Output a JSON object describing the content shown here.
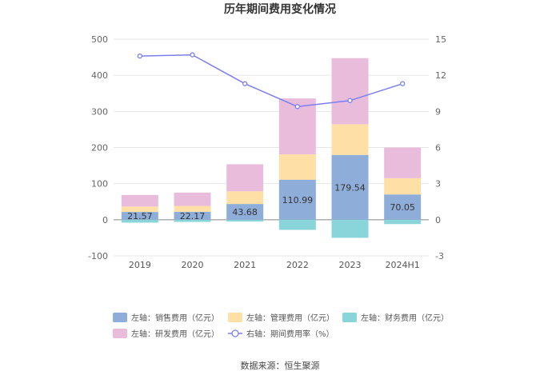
{
  "chart_data": {
    "type": "bar",
    "title": "历年期间费用变化情况",
    "categories": [
      "2019",
      "2020",
      "2021",
      "2022",
      "2023",
      "2024H1"
    ],
    "left_axis": {
      "min": -100,
      "max": 500,
      "ticks": [
        -100,
        0,
        100,
        200,
        300,
        400,
        500
      ]
    },
    "right_axis": {
      "min": -3,
      "max": 15,
      "ticks": [
        -3,
        0,
        3,
        6,
        9,
        12,
        15
      ]
    },
    "stacked": true,
    "series": [
      {
        "name": "左轴：销售费用（亿元）",
        "axis": "left",
        "color": "#8eadd9",
        "values": [
          21.57,
          22.17,
          43.68,
          110.99,
          179.54,
          70.05
        ],
        "labels": [
          "21.57",
          "22.17",
          "43.68",
          "110.99",
          "179.54",
          "70.05"
        ]
      },
      {
        "name": "左轴：管理费用（亿元）",
        "axis": "left",
        "color": "#fedfa6",
        "values": [
          15,
          16,
          35,
          70,
          85,
          45
        ]
      },
      {
        "name": "左轴：财务费用（亿元）",
        "axis": "left",
        "color": "#8ad5da",
        "values": [
          -8,
          -6,
          -5,
          -28,
          -50,
          -12
        ]
      },
      {
        "name": "左轴：研发费用（亿元）",
        "axis": "left",
        "color": "#e9bcdc",
        "values": [
          32,
          37,
          75,
          155,
          183,
          85
        ]
      },
      {
        "name": "右轴：期间费用率（%）",
        "axis": "right",
        "type": "line",
        "color": "#7b7ff0",
        "values": [
          13.6,
          13.7,
          11.3,
          9.4,
          9.9,
          11.3
        ]
      }
    ],
    "grid": true,
    "legend_position": "bottom"
  },
  "legend_rows": [
    [
      "左轴：销售费用（亿元）",
      "左轴：管理费用（亿元）",
      "左轴：财务费用（亿元）"
    ],
    [
      "左轴：研发费用（亿元）",
      "右轴：期间费用率（%）"
    ]
  ],
  "source": "数据来源：恒生聚源"
}
